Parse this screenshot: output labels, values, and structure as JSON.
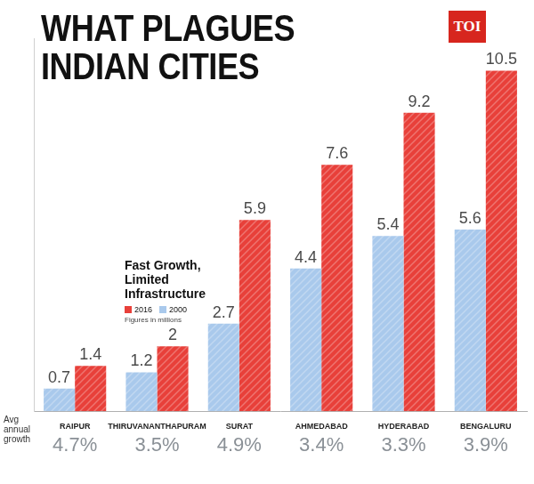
{
  "logo": "TOI",
  "chart_data": {
    "type": "bar",
    "title": "WHAT PLAGUES INDIAN CITIES",
    "subtitle": "Fast Growth, Limited Infrastructure",
    "note": "Figures in millions",
    "categories": [
      "RAIPUR",
      "THIRUVANANTHAPURAM",
      "SURAT",
      "AHMEDABAD",
      "HYDERABAD",
      "BENGALURU"
    ],
    "series": [
      {
        "name": "2000",
        "color": "#a9c9ec",
        "values": [
          0.7,
          1.2,
          2.7,
          4.4,
          5.4,
          5.6
        ]
      },
      {
        "name": "2016",
        "color": "#e8403a",
        "values": [
          1.4,
          2,
          5.9,
          7.6,
          9.2,
          10.5
        ]
      }
    ],
    "growth": {
      "label": "Avg annual growth",
      "values": [
        4.7,
        3.5,
        4.9,
        3.4,
        3.3,
        3.9
      ],
      "value_labels": [
        "4.7%",
        "3.5%",
        "4.9%",
        "3.4%",
        "3.3%",
        "3.9%"
      ]
    },
    "ylim": [
      0,
      11.5
    ],
    "grid": false,
    "legend": "left",
    "data_labels": true,
    "tick_labels": "x"
  }
}
